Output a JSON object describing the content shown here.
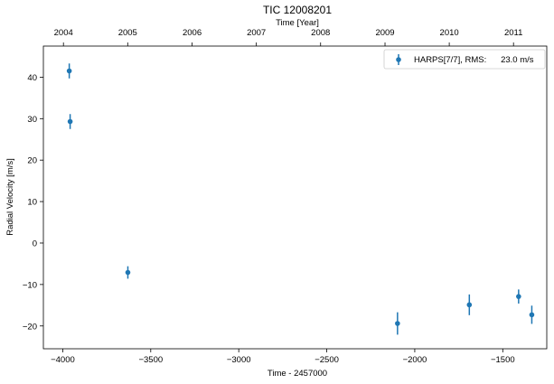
{
  "chart_data": {
    "type": "scatter",
    "title": "TIC 12008201",
    "xlabel": "Time - 2457000",
    "ylabel": "Radial Velocity [m/s]",
    "top_xlabel": "Time [Year]",
    "xlim": [
      -4110,
      -1250
    ],
    "ylim": [
      -25.5,
      47.5
    ],
    "xticks": [
      -4000,
      -3500,
      -3000,
      -2500,
      -2000,
      -1500
    ],
    "xtick_labels": [
      "−4000",
      "−3500",
      "−3000",
      "−2500",
      "−2000",
      "−1500"
    ],
    "yticks": [
      -20,
      -10,
      0,
      10,
      20,
      30,
      40
    ],
    "ytick_labels": [
      "−20",
      "−10",
      "0",
      "10",
      "20",
      "30",
      "40"
    ],
    "top_ticks": [
      {
        "label": "2004",
        "x": -3996
      },
      {
        "label": "2005",
        "x": -3631
      },
      {
        "label": "2006",
        "x": -3265
      },
      {
        "label": "2007",
        "x": -2900
      },
      {
        "label": "2008",
        "x": -2535
      },
      {
        "label": "2009",
        "x": -2169
      },
      {
        "label": "2010",
        "x": -1804
      },
      {
        "label": "2011",
        "x": -1439
      }
    ],
    "legend": {
      "placement": "top-right",
      "label": "HARPS[7/7], RMS:      23.0 m/s"
    },
    "grid": false,
    "series": [
      {
        "name": "HARPS[7/7]",
        "color": "#1f77b4",
        "x": [
          -3963,
          -3958,
          -3630,
          -2098,
          -1690,
          -1410,
          -1335
        ],
        "y": [
          41.5,
          29.3,
          -7.1,
          -19.4,
          -14.9,
          -12.9,
          -17.3
        ],
        "yerr": [
          1.8,
          1.8,
          1.5,
          2.7,
          2.5,
          1.7,
          2.2
        ]
      }
    ]
  }
}
